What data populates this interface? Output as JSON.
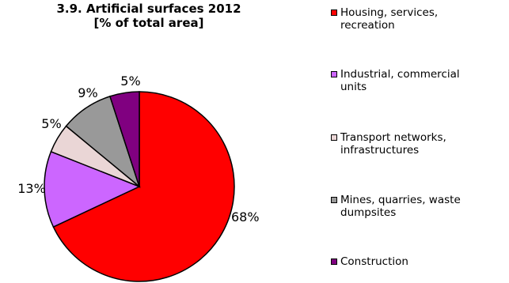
{
  "chart_data": {
    "type": "pie",
    "title_line1": "3.9. Artificial surfaces 2012",
    "title_line2": "[% of total area]",
    "slices": [
      {
        "name": "Housing, services,\nrecreation",
        "value": 68,
        "label": "68%",
        "color": "#ff0000"
      },
      {
        "name": "Industrial, commercial\nunits",
        "value": 13,
        "label": "13%",
        "color": "#cc66ff"
      },
      {
        "name": "Transport networks,\ninfrastructures",
        "value": 5,
        "label": "5%",
        "color": "#ead6d6"
      },
      {
        "name": "Mines, quarries, waste\ndumpsites",
        "value": 9,
        "label": "9%",
        "color": "#999999"
      },
      {
        "name": "Construction",
        "value": 5,
        "label": "5%",
        "color": "#800080"
      }
    ],
    "legend_position": "right"
  }
}
